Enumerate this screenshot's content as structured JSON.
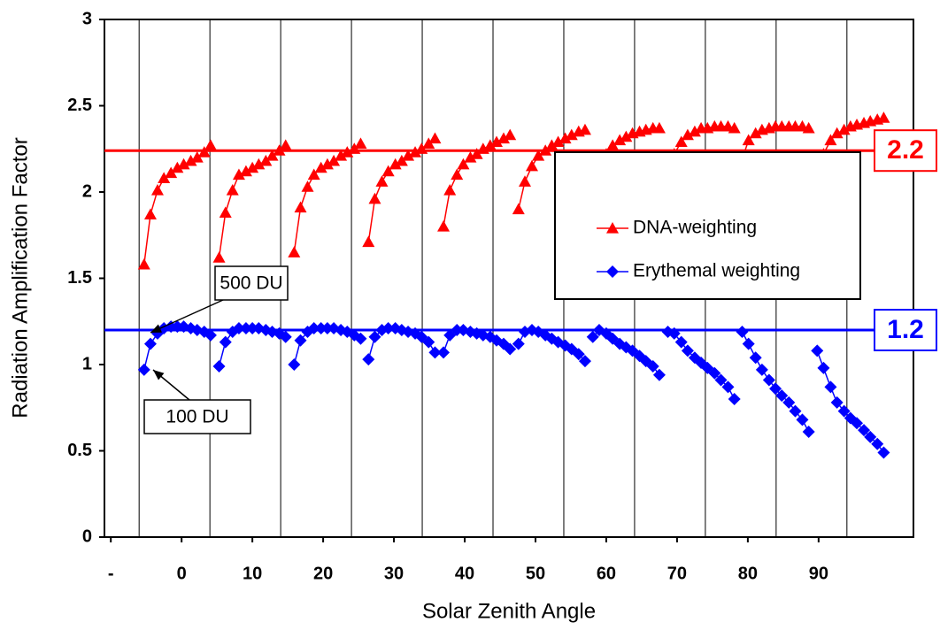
{
  "chart_data": {
    "type": "line",
    "x_label": "Solar Zenith Angle",
    "y_label": "Radiation Amplification Factor",
    "x": [
      -5.3,
      -4.4,
      -3.4,
      -2.5,
      -1.5,
      -0.6,
      0.3,
      1.3,
      2.2,
      3.2,
      4.1,
      4.7,
      5.3,
      6.2,
      7.2,
      8.1,
      9.1,
      10.0,
      10.9,
      11.9,
      12.8,
      13.8,
      14.7,
      15.3,
      15.9,
      16.8,
      17.8,
      18.7,
      19.7,
      20.6,
      21.5,
      22.5,
      23.4,
      24.4,
      25.3,
      25.9,
      26.4,
      27.3,
      28.3,
      29.2,
      30.2,
      31.1,
      32.0,
      33.0,
      33.9,
      34.9,
      35.8,
      36.4,
      37.0,
      37.9,
      38.9,
      39.8,
      40.8,
      41.7,
      42.6,
      43.6,
      44.5,
      45.5,
      46.4,
      47.0,
      47.6,
      48.5,
      49.5,
      50.4,
      51.4,
      52.3,
      53.2,
      54.2,
      55.1,
      56.1,
      57.0,
      57.6,
      58.1,
      59.0,
      60.0,
      60.9,
      61.9,
      62.8,
      63.7,
      64.7,
      65.6,
      66.6,
      67.5,
      68.1,
      68.7,
      69.6,
      70.6,
      71.5,
      72.5,
      73.4,
      74.3,
      75.3,
      76.2,
      77.2,
      78.1,
      78.7,
      79.2,
      80.1,
      81.1,
      82.0,
      83.0,
      83.9,
      84.8,
      85.8,
      86.7,
      87.7,
      88.6,
      89.2,
      89.8,
      90.7,
      91.7,
      92.6,
      93.6,
      94.5,
      95.4,
      96.4,
      97.3,
      98.3,
      99.2
    ],
    "series": [
      {
        "name": "DNA-weighting",
        "color": "#ff0000",
        "marker": "triangle",
        "values": [
          1.58,
          1.87,
          2.01,
          2.08,
          2.11,
          2.14,
          2.16,
          2.18,
          2.2,
          2.23,
          2.27,
          null,
          1.62,
          1.88,
          2.01,
          2.1,
          2.12,
          2.14,
          2.16,
          2.18,
          2.21,
          2.24,
          2.27,
          null,
          1.65,
          1.91,
          2.03,
          2.1,
          2.14,
          2.16,
          2.18,
          2.21,
          2.23,
          2.25,
          2.28,
          null,
          1.71,
          1.96,
          2.06,
          2.12,
          2.16,
          2.18,
          2.21,
          2.23,
          2.25,
          2.28,
          2.31,
          null,
          1.8,
          2.01,
          2.1,
          2.16,
          2.2,
          2.22,
          2.25,
          2.27,
          2.29,
          2.31,
          2.33,
          null,
          1.9,
          2.06,
          2.15,
          2.21,
          2.24,
          2.27,
          2.29,
          2.31,
          2.33,
          2.35,
          2.36,
          null,
          1.99,
          2.13,
          2.22,
          2.27,
          2.3,
          2.32,
          2.34,
          2.35,
          2.36,
          2.37,
          2.37,
          null,
          2.1,
          2.22,
          2.29,
          2.33,
          2.35,
          2.37,
          2.37,
          2.38,
          2.38,
          2.38,
          2.37,
          null,
          2.19,
          2.3,
          2.34,
          2.36,
          2.37,
          2.38,
          2.38,
          2.38,
          2.38,
          2.38,
          2.37,
          null,
          2.08,
          2.22,
          2.3,
          2.34,
          2.36,
          2.38,
          2.39,
          2.4,
          2.41,
          2.42,
          2.43
        ]
      },
      {
        "name": "Erythemal weighting",
        "color": "#0000ff",
        "marker": "diamond",
        "values": [
          0.97,
          1.12,
          1.18,
          1.21,
          1.22,
          1.22,
          1.22,
          1.21,
          1.2,
          1.19,
          1.17,
          null,
          0.99,
          1.13,
          1.19,
          1.21,
          1.21,
          1.21,
          1.21,
          1.2,
          1.19,
          1.18,
          1.16,
          null,
          1.0,
          1.14,
          1.19,
          1.21,
          1.21,
          1.21,
          1.21,
          1.2,
          1.19,
          1.17,
          1.15,
          null,
          1.03,
          1.16,
          1.2,
          1.21,
          1.21,
          1.2,
          1.19,
          1.18,
          1.16,
          1.13,
          1.07,
          null,
          1.07,
          1.17,
          1.2,
          1.2,
          1.19,
          1.18,
          1.17,
          1.16,
          1.14,
          1.12,
          1.09,
          null,
          1.12,
          1.19,
          1.2,
          1.19,
          1.17,
          1.15,
          1.13,
          1.11,
          1.09,
          1.06,
          1.02,
          null,
          1.16,
          1.2,
          1.18,
          1.15,
          1.12,
          1.1,
          1.08,
          1.05,
          1.02,
          0.99,
          0.94,
          null,
          1.19,
          1.18,
          1.13,
          1.08,
          1.04,
          1.01,
          0.98,
          0.95,
          0.91,
          0.87,
          0.8,
          null,
          1.19,
          1.12,
          1.04,
          0.97,
          0.91,
          0.86,
          0.82,
          0.78,
          0.73,
          0.68,
          0.61,
          null,
          1.08,
          0.98,
          0.87,
          0.78,
          0.73,
          0.69,
          0.66,
          0.62,
          0.58,
          0.54,
          0.49
        ]
      }
    ],
    "xlim": [
      -10.9,
      103.4
    ],
    "xticks": [
      {
        "value": -10,
        "label": "-"
      },
      0,
      10,
      20,
      30,
      40,
      50,
      60,
      70,
      80,
      90
    ],
    "xgrid": [
      -6,
      4,
      14,
      24,
      34,
      44,
      54,
      64,
      74,
      84,
      94
    ],
    "ylim": [
      0,
      3
    ],
    "yticks": [
      0,
      0.5,
      1,
      1.5,
      2,
      2.5,
      3
    ],
    "reference_lines": [
      {
        "value": 2.24,
        "label": "2.2",
        "color": "#ff0000"
      },
      {
        "value": 1.2,
        "label": "1.2",
        "color": "#0000ff"
      }
    ],
    "annotations": [
      {
        "text": "500 DU"
      },
      {
        "text": "100 DU"
      }
    ]
  }
}
